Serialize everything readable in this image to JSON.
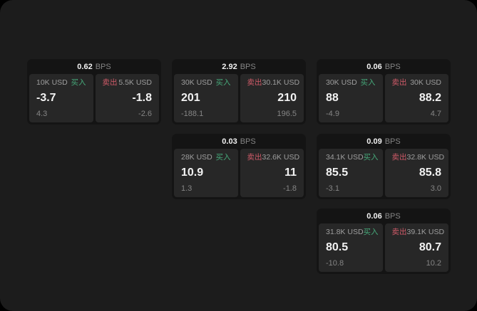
{
  "labels": {
    "bps_unit": "BPS",
    "buy": "买入",
    "sell": "卖出"
  },
  "colors": {
    "background": "#1c1c1c",
    "card": "#141414",
    "subcard": "#272727",
    "buy_green": "#46a97a",
    "sell_red": "#cf5a68"
  },
  "cards": [
    {
      "bps": "0.62",
      "grid": {
        "row": 1,
        "col": 1
      },
      "buy": {
        "amount": "10K USD",
        "price": "-3.7",
        "delta": "4.3"
      },
      "sell": {
        "amount": "5.5K USD",
        "price": "-1.8",
        "delta": "-2.6"
      }
    },
    {
      "bps": "2.92",
      "grid": {
        "row": 1,
        "col": 2
      },
      "buy": {
        "amount": "30K USD",
        "price": "201",
        "delta": "-188.1"
      },
      "sell": {
        "amount": "30.1K USD",
        "price": "210",
        "delta": "196.5"
      }
    },
    {
      "bps": "0.06",
      "grid": {
        "row": 1,
        "col": 3
      },
      "buy": {
        "amount": "30K USD",
        "price": "88",
        "delta": "-4.9"
      },
      "sell": {
        "amount": "30K USD",
        "price": "88.2",
        "delta": "4.7"
      }
    },
    {
      "bps": "0.03",
      "grid": {
        "row": 2,
        "col": 2
      },
      "buy": {
        "amount": "28K USD",
        "price": "10.9",
        "delta": "1.3"
      },
      "sell": {
        "amount": "32.6K USD",
        "price": "11",
        "delta": "-1.8"
      }
    },
    {
      "bps": "0.09",
      "grid": {
        "row": 2,
        "col": 3
      },
      "buy": {
        "amount": "34.1K USD",
        "price": "85.5",
        "delta": "-3.1"
      },
      "sell": {
        "amount": "32.8K USD",
        "price": "85.8",
        "delta": "3.0"
      }
    },
    {
      "bps": "0.06",
      "grid": {
        "row": 3,
        "col": 3
      },
      "buy": {
        "amount": "31.8K USD",
        "price": "80.5",
        "delta": "-10.8"
      },
      "sell": {
        "amount": "39.1K USD",
        "price": "80.7",
        "delta": "10.2"
      }
    }
  ]
}
